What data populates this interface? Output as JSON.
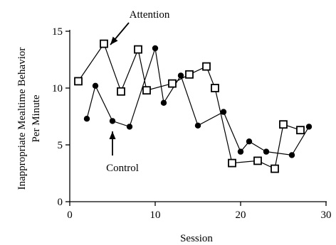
{
  "chart_data": {
    "type": "line",
    "xlabel": "Session",
    "ylabel_lines": [
      "Inappropriate Mealtime Behavior",
      "Per Minute"
    ],
    "xlim": [
      0,
      30
    ],
    "ylim": [
      0,
      15
    ],
    "xticks": [
      0,
      10,
      20,
      30
    ],
    "yticks": [
      0,
      5,
      10,
      15
    ],
    "grid": false,
    "series": [
      {
        "name": "Attention",
        "marker": "open-square",
        "points": [
          {
            "x": 1,
            "y": 10.6
          },
          {
            "x": 4,
            "y": 13.9
          },
          {
            "x": 6,
            "y": 9.7
          },
          {
            "x": 8,
            "y": 13.4
          },
          {
            "x": 9,
            "y": 9.8
          },
          {
            "x": 12,
            "y": 10.4
          },
          {
            "x": 14,
            "y": 11.2
          },
          {
            "x": 16,
            "y": 11.9
          },
          {
            "x": 17,
            "y": 10.0
          },
          {
            "x": 19,
            "y": 3.4
          },
          {
            "x": 22,
            "y": 3.6
          },
          {
            "x": 24,
            "y": 2.9
          },
          {
            "x": 25,
            "y": 6.8
          },
          {
            "x": 27,
            "y": 6.3
          }
        ]
      },
      {
        "name": "Control",
        "marker": "filled-circle",
        "points": [
          {
            "x": 2,
            "y": 7.3
          },
          {
            "x": 3,
            "y": 10.2
          },
          {
            "x": 5,
            "y": 7.1
          },
          {
            "x": 7,
            "y": 6.6
          },
          {
            "x": 10,
            "y": 13.5
          },
          {
            "x": 11,
            "y": 8.7
          },
          {
            "x": 13,
            "y": 11.1
          },
          {
            "x": 15,
            "y": 6.7
          },
          {
            "x": 18,
            "y": 7.9
          },
          {
            "x": 20,
            "y": 4.4
          },
          {
            "x": 21,
            "y": 5.3
          },
          {
            "x": 23,
            "y": 4.4
          },
          {
            "x": 26,
            "y": 4.1
          },
          {
            "x": 28,
            "y": 6.6
          }
        ]
      }
    ],
    "annotations": [
      {
        "text": "Attention",
        "target": {
          "x": 4,
          "y": 13.9
        }
      },
      {
        "text": "Control",
        "target": {
          "x": 5,
          "y": 7.1
        }
      }
    ],
    "colors": {
      "line": "#000000",
      "background": "#ffffff"
    }
  }
}
